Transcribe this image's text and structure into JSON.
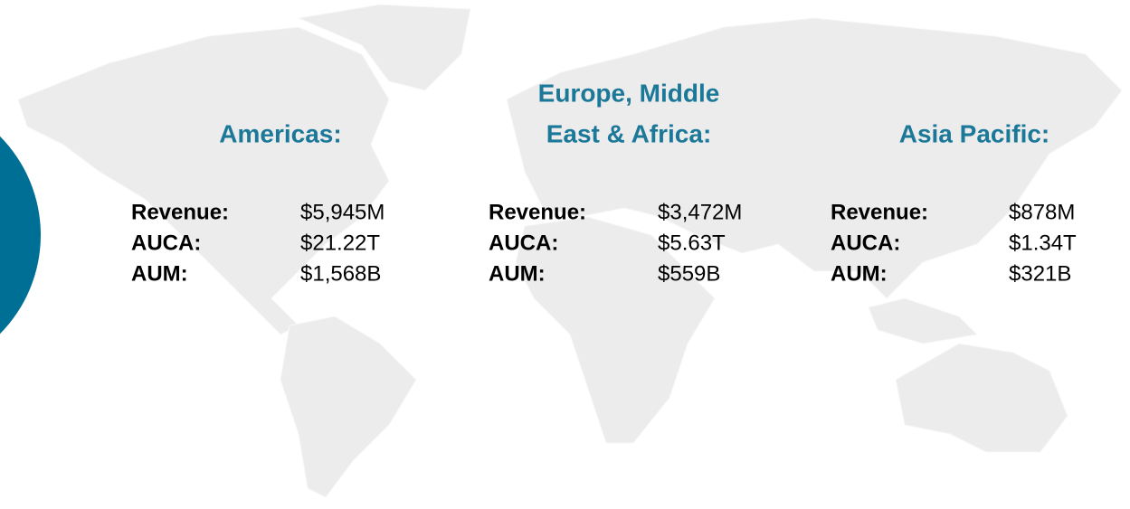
{
  "regions": [
    {
      "title": [
        "Americas:"
      ],
      "metrics": [
        [
          "Revenue:",
          "$5,945M"
        ],
        [
          "AUCA:",
          "$21.22T"
        ],
        [
          "AUM:",
          "$1,568B"
        ]
      ]
    },
    {
      "title": [
        "Europe, Middle",
        "East & Africa:"
      ],
      "metrics": [
        [
          "Revenue:",
          "$3,472M"
        ],
        [
          "AUCA:",
          "$5.63T"
        ],
        [
          "AUM:",
          "$559B"
        ]
      ]
    },
    {
      "title": [
        "Asia Pacific:"
      ],
      "metrics": [
        [
          "Revenue:",
          "$878M"
        ],
        [
          "AUCA:",
          "$1.34T"
        ],
        [
          "AUM:",
          "$321B"
        ]
      ]
    }
  ]
}
